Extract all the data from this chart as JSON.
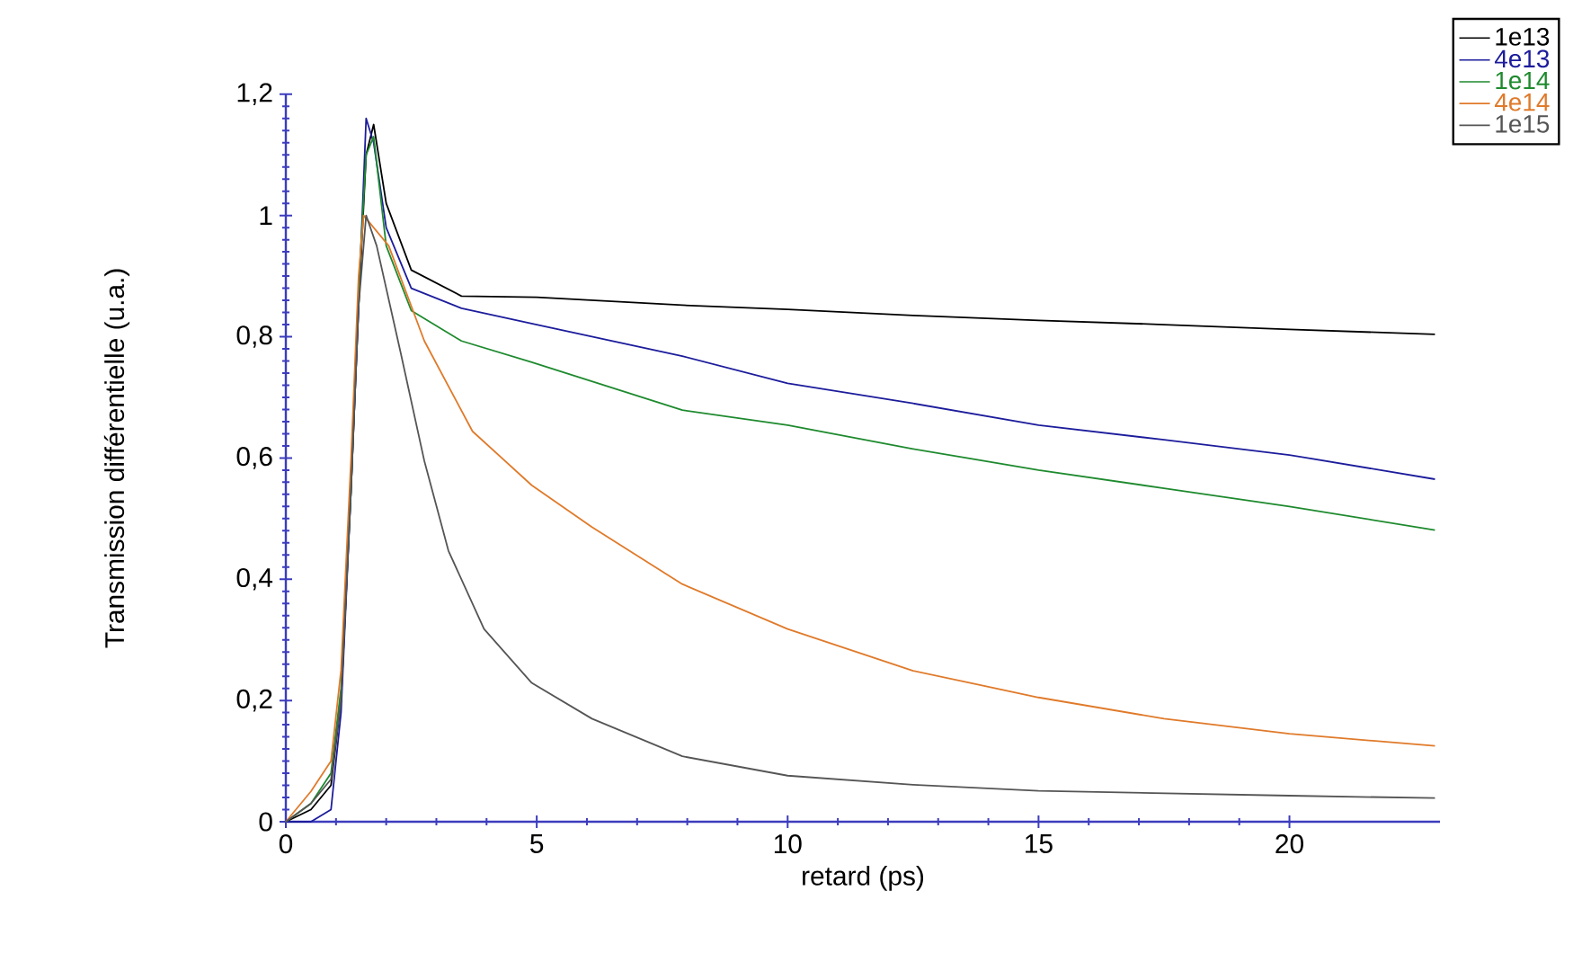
{
  "chart_data": {
    "type": "line",
    "xlabel": "retard (ps)",
    "ylabel": "Transmission différentielle (u.a.)",
    "xlim": [
      0,
      23
    ],
    "ylim": [
      0,
      1.2
    ],
    "xticks": [
      0,
      5,
      10,
      15,
      20
    ],
    "yticks": [
      0,
      {
        "value": 0.2,
        "label": "0,2"
      },
      {
        "value": 0.4,
        "label": "0,4"
      },
      {
        "value": 0.6,
        "label": "0,6"
      },
      {
        "value": 0.8,
        "label": "0,8"
      },
      1,
      {
        "value": 1.2,
        "label": "1,2"
      }
    ],
    "legend": "top right",
    "marker": "none",
    "line_style": "solid",
    "grid": false,
    "series": [
      {
        "name": "1e13",
        "color": "#000000",
        "x": [
          0,
          0.5,
          0.9,
          1.1,
          1.3,
          1.45,
          1.6,
          1.75,
          2.0,
          2.5,
          3.5,
          5,
          7.9,
          10,
          12.5,
          15,
          17.5,
          20,
          22.9
        ],
        "values": [
          0,
          0.02,
          0.06,
          0.2,
          0.55,
          0.85,
          1.1,
          1.15,
          1.02,
          0.91,
          0.867,
          0.865,
          0.852,
          0.845,
          0.835,
          0.827,
          0.82,
          0.812,
          0.804
        ]
      },
      {
        "name": "4e13",
        "color": "#1c1c9c",
        "x": [
          0,
          0.5,
          0.9,
          1.1,
          1.3,
          1.45,
          1.6,
          1.75,
          2.0,
          2.5,
          3.5,
          5,
          7.9,
          10,
          12.5,
          15,
          17.5,
          20,
          22.9
        ],
        "values": [
          0,
          0.0,
          0.02,
          0.18,
          0.55,
          0.85,
          1.16,
          1.12,
          0.98,
          0.88,
          0.847,
          0.82,
          0.768,
          0.723,
          0.69,
          0.654,
          0.63,
          0.605,
          0.565
        ]
      },
      {
        "name": "1e14",
        "color": "#1e8a2e",
        "x": [
          0,
          0.5,
          0.9,
          1.1,
          1.3,
          1.45,
          1.6,
          1.75,
          2.0,
          2.5,
          3.5,
          4.9,
          7.9,
          10,
          12.5,
          15,
          17.5,
          20,
          22.9
        ],
        "values": [
          0,
          0.03,
          0.08,
          0.22,
          0.55,
          0.88,
          1.1,
          1.13,
          0.95,
          0.843,
          0.793,
          0.758,
          0.679,
          0.654,
          0.615,
          0.58,
          0.55,
          0.52,
          0.481
        ]
      },
      {
        "name": "4e14",
        "color": "#e07a2a",
        "x": [
          0,
          0.5,
          0.9,
          1.1,
          1.3,
          1.45,
          1.55,
          2.05,
          2.76,
          3.72,
          4.9,
          6.1,
          7.9,
          10,
          12.5,
          15,
          17.5,
          20,
          22.9
        ],
        "values": [
          0,
          0.05,
          0.1,
          0.25,
          0.6,
          0.9,
          1.0,
          0.95,
          0.793,
          0.644,
          0.555,
          0.486,
          0.392,
          0.318,
          0.249,
          0.205,
          0.17,
          0.145,
          0.125
        ]
      },
      {
        "name": "1e15",
        "color": "#555555",
        "x": [
          0,
          0.5,
          0.9,
          1.1,
          1.3,
          1.45,
          1.6,
          1.81,
          2.29,
          2.76,
          3.24,
          3.95,
          4.9,
          6.1,
          7.9,
          10,
          12.5,
          15,
          20,
          22.9
        ],
        "values": [
          0,
          0.03,
          0.07,
          0.2,
          0.55,
          0.85,
          1.0,
          0.95,
          0.773,
          0.595,
          0.447,
          0.318,
          0.229,
          0.17,
          0.108,
          0.076,
          0.061,
          0.051,
          0.043,
          0.039
        ]
      }
    ]
  }
}
